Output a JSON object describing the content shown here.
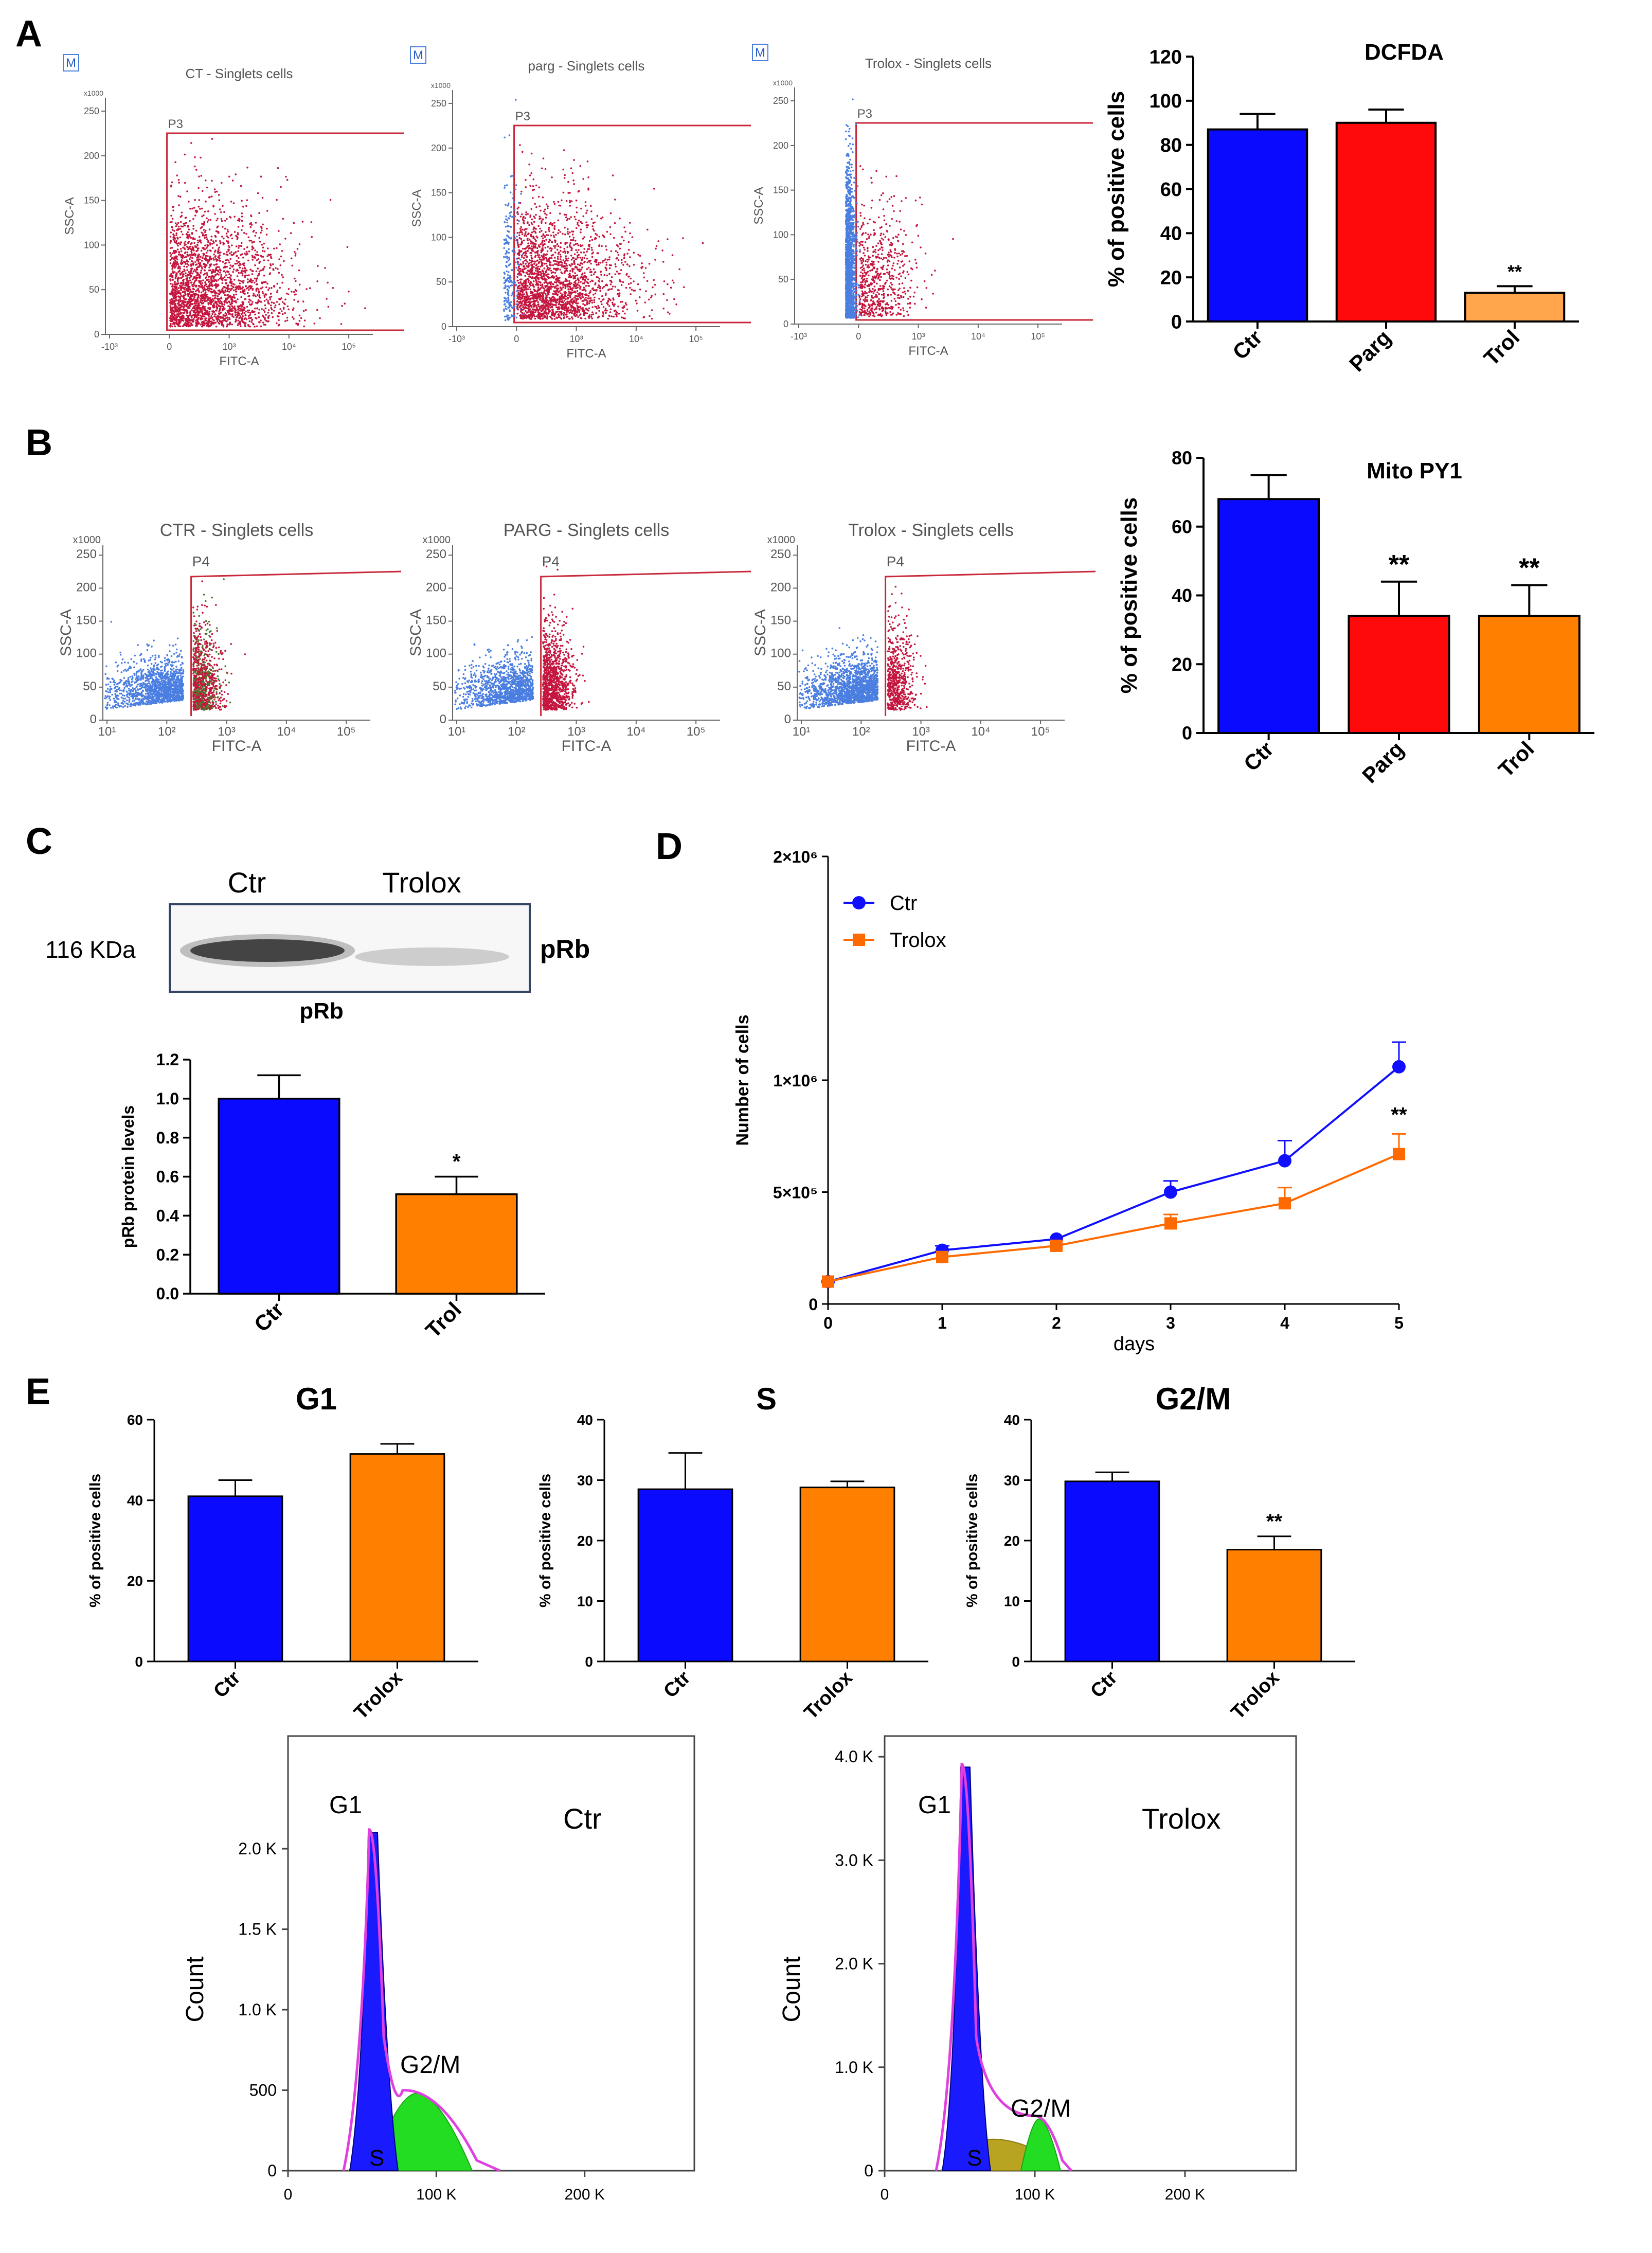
{
  "panels": {
    "a": "A",
    "b": "B",
    "c": "C",
    "d": "D",
    "e": "E"
  },
  "flow_a": [
    {
      "title": "CT - Singlets cells",
      "gate": "P3",
      "m_label": "M",
      "xlabel": "FITC-A",
      "ylabel": "SSC-A",
      "y_unit": "x1000",
      "yticks": [
        "0",
        "50",
        "100",
        "150",
        "200",
        "250"
      ],
      "xticks": [
        "-10³",
        "0",
        "10³",
        "10⁴",
        "10⁵"
      ]
    },
    {
      "title": "parg - Singlets cells",
      "gate": "P3",
      "m_label": "M",
      "xlabel": "FITC-A",
      "ylabel": "SSC-A",
      "y_unit": "x1000",
      "yticks": [
        "0",
        "50",
        "100",
        "150",
        "200",
        "250"
      ],
      "xticks": [
        "-10³",
        "0",
        "10³",
        "10⁴",
        "10⁵"
      ]
    },
    {
      "title": "Trolox - Singlets cells",
      "gate": "P3",
      "m_label": "M",
      "xlabel": "FITC-A",
      "ylabel": "SSC-A",
      "y_unit": "x1000",
      "yticks": [
        "0",
        "50",
        "100",
        "150",
        "200",
        "250"
      ],
      "xticks": [
        "-10³",
        "0",
        "10³",
        "10⁴",
        "10⁵"
      ]
    }
  ],
  "flow_b": [
    {
      "title": "CTR - Singlets cells",
      "gate": "P4",
      "xlabel": "FITC-A",
      "ylabel": "SSC-A",
      "y_unit": "x1000",
      "yticks": [
        "0",
        "50",
        "100",
        "150",
        "200",
        "250"
      ],
      "xticks": [
        "10¹",
        "10²",
        "10³",
        "10⁴",
        "10⁵"
      ]
    },
    {
      "title": "PARG - Singlets cells",
      "gate": "P4",
      "xlabel": "FITC-A",
      "ylabel": "SSC-A",
      "y_unit": "x1000",
      "yticks": [
        "0",
        "50",
        "100",
        "150",
        "200",
        "250"
      ],
      "xticks": [
        "10¹",
        "10²",
        "10³",
        "10⁴",
        "10⁵"
      ]
    },
    {
      "title": "Trolox - Singlets cells",
      "gate": "P4",
      "xlabel": "FITC-A",
      "ylabel": "SSC-A",
      "y_unit": "x1000",
      "yticks": [
        "0",
        "50",
        "100",
        "150",
        "200",
        "250"
      ],
      "xticks": [
        "10¹",
        "10²",
        "10³",
        "10⁴",
        "10⁵"
      ]
    }
  ],
  "blot": {
    "lanes": [
      "Ctr",
      "Trolox"
    ],
    "kda": "116 KDa",
    "protein": "pRb"
  },
  "colors": {
    "blue": "#0a0aff",
    "red": "#ff0a0a",
    "orange": "#ff8000",
    "light_orange": "#ffa64d",
    "dot_blue": "#4a7ee0",
    "dot_red": "#c4163e",
    "gate": "#c8283a"
  },
  "chart_data": [
    {
      "id": "A-bar",
      "type": "bar",
      "title": "DCFDA",
      "ylabel": "% of positive cells",
      "categories": [
        "Ctr",
        "Parg",
        "Trol"
      ],
      "values": [
        87,
        90,
        13
      ],
      "errors": [
        7,
        6,
        3
      ],
      "ylim": [
        0,
        120
      ],
      "yticks": [
        0,
        20,
        40,
        60,
        80,
        100,
        120
      ],
      "annotations": [
        "",
        "",
        "**"
      ],
      "colors": [
        "#0a0aff",
        "#ff0a0a",
        "#ffa64d"
      ]
    },
    {
      "id": "B-bar",
      "type": "bar",
      "title": "Mito PY1",
      "ylabel": "% of positive cells",
      "categories": [
        "Ctr",
        "Parg",
        "Trol"
      ],
      "values": [
        68,
        34,
        34
      ],
      "errors": [
        7,
        10,
        9
      ],
      "ylim": [
        0,
        80
      ],
      "yticks": [
        0,
        20,
        40,
        60,
        80
      ],
      "annotations": [
        "",
        "**",
        "**"
      ],
      "colors": [
        "#0a0aff",
        "#ff0a0a",
        "#ff8000"
      ]
    },
    {
      "id": "C-bar",
      "type": "bar",
      "title": "pRb",
      "ylabel": "pRb protein levels",
      "categories": [
        "Ctr",
        "Trol"
      ],
      "values": [
        1.0,
        0.51
      ],
      "errors": [
        0.12,
        0.09
      ],
      "ylim": [
        0,
        1.2
      ],
      "yticks": [
        "0.0",
        "0.2",
        "0.4",
        "0.6",
        "0.8",
        "1.0",
        "1.2"
      ],
      "annotations": [
        "",
        "*"
      ],
      "colors": [
        "#0a0aff",
        "#ff8000"
      ]
    },
    {
      "id": "D-line",
      "type": "line",
      "xlabel": "days",
      "ylabel": "Number of cells",
      "x": [
        0,
        1,
        2,
        3,
        4,
        5
      ],
      "xlim": [
        0,
        5
      ],
      "ylim": [
        0,
        2000000
      ],
      "ytick_values": [
        0,
        500000,
        1000000,
        2000000
      ],
      "ytick_labels": [
        "0",
        "5×10⁵",
        "1×10⁶",
        "2×10⁶"
      ],
      "series": [
        {
          "name": "Ctr",
          "values": [
            100000,
            240000,
            290000,
            500000,
            640000,
            1060000
          ],
          "errors": [
            0,
            20000,
            0,
            50000,
            90000,
            110000
          ],
          "color": "#1010ff",
          "marker": "circle"
        },
        {
          "name": "Trolox",
          "values": [
            100000,
            210000,
            260000,
            360000,
            450000,
            670000
          ],
          "errors": [
            0,
            0,
            0,
            40000,
            70000,
            90000
          ],
          "color": "#ff6a00",
          "marker": "square"
        }
      ],
      "annotations": [
        {
          "x": 5,
          "text": "**"
        }
      ]
    },
    {
      "id": "E-G1",
      "type": "bar",
      "title": "G1",
      "ylabel": "% of positive cells",
      "categories": [
        "Ctr",
        "Trolox"
      ],
      "values": [
        41,
        51.5
      ],
      "errors": [
        4,
        2.5
      ],
      "ylim": [
        0,
        60
      ],
      "yticks": [
        0,
        20,
        40,
        60
      ],
      "annotations": [
        "",
        ""
      ],
      "colors": [
        "#0a0aff",
        "#ff8000"
      ]
    },
    {
      "id": "E-S",
      "type": "bar",
      "title": "S",
      "ylabel": "% of positive cells",
      "categories": [
        "Ctr",
        "Trolox"
      ],
      "values": [
        28.5,
        28.8
      ],
      "errors": [
        6,
        1
      ],
      "ylim": [
        0,
        40
      ],
      "yticks": [
        0,
        10,
        20,
        30,
        40
      ],
      "annotations": [
        "",
        ""
      ],
      "colors": [
        "#0a0aff",
        "#ff8000"
      ]
    },
    {
      "id": "E-G2M",
      "type": "bar",
      "title": "G2/M",
      "ylabel": "% of positive cells",
      "categories": [
        "Ctr",
        "Trolox"
      ],
      "values": [
        29.8,
        18.5
      ],
      "errors": [
        1.5,
        2.2
      ],
      "ylim": [
        0,
        40
      ],
      "yticks": [
        0,
        10,
        20,
        30,
        40
      ],
      "annotations": [
        "",
        "**"
      ],
      "colors": [
        "#0a0aff",
        "#ff8000"
      ]
    },
    {
      "id": "E-hist-ctr",
      "type": "area",
      "title": "Ctr",
      "ylabel": "Count",
      "xticks": [
        "0",
        "100 K",
        "200 K"
      ],
      "yticks": [
        "0",
        "500",
        "1.0 K",
        "1.5 K",
        "2.0 K"
      ],
      "ytick_values": [
        0,
        500,
        1000,
        1500,
        2000
      ],
      "ylim": [
        0,
        2700
      ],
      "phase_labels": [
        "G1",
        "S",
        "G2/M"
      ],
      "g1_peak": 2100,
      "g2m_peak": 480
    },
    {
      "id": "E-hist-trolox",
      "type": "area",
      "title": "Trolox",
      "ylabel": "Count",
      "xticks": [
        "0",
        "100 K",
        "200 K"
      ],
      "yticks": [
        "0",
        "1.0 K",
        "2.0 K",
        "3.0 K",
        "4.0 K"
      ],
      "ytick_values": [
        0,
        1000,
        2000,
        3000,
        4000
      ],
      "ylim": [
        0,
        4200
      ],
      "phase_labels": [
        "G1",
        "S",
        "G2/M"
      ],
      "g1_peak": 3900,
      "g2m_peak": 500
    }
  ]
}
